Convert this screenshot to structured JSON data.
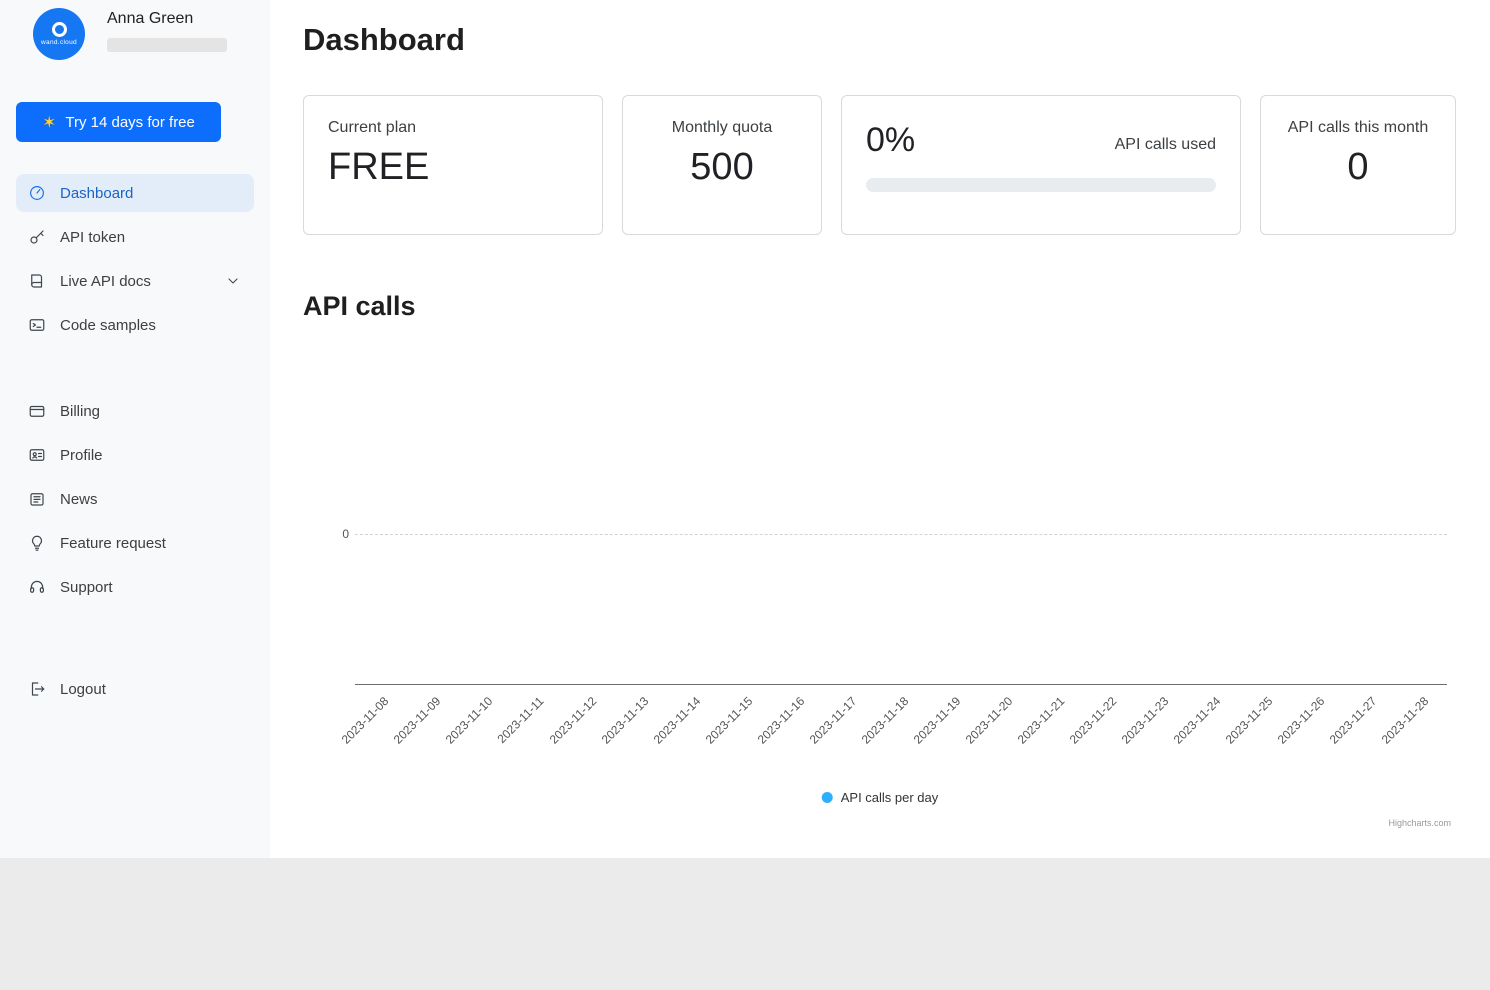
{
  "sidebar": {
    "logo_text": "wand.cloud",
    "user_name": "Anna Green",
    "trial_button_label": "Try 14 days for free",
    "nav_primary": [
      {
        "label": "Dashboard",
        "active": true
      },
      {
        "label": "API token"
      },
      {
        "label": "Live API docs"
      },
      {
        "label": "Code samples"
      }
    ],
    "nav_secondary": [
      {
        "label": "Billing"
      },
      {
        "label": "Profile"
      },
      {
        "label": "News"
      },
      {
        "label": "Feature request"
      },
      {
        "label": "Support"
      }
    ],
    "logout_label": "Logout"
  },
  "header": {
    "title": "Dashboard"
  },
  "cards": {
    "current_plan": {
      "label": "Current plan",
      "value": "FREE"
    },
    "monthly_quota": {
      "label": "Monthly quota",
      "value": "500"
    },
    "usage": {
      "percent": "0%",
      "percent_value": 0,
      "label": "API calls used"
    },
    "calls_month": {
      "label": "API calls this month",
      "value": "0"
    }
  },
  "chart_section": {
    "title": "API calls"
  },
  "chart_data": {
    "type": "line",
    "title": "API calls",
    "x": [
      "2023-11-08",
      "2023-11-09",
      "2023-11-10",
      "2023-11-11",
      "2023-11-12",
      "2023-11-13",
      "2023-11-14",
      "2023-11-15",
      "2023-11-16",
      "2023-11-17",
      "2023-11-18",
      "2023-11-19",
      "2023-11-20",
      "2023-11-21",
      "2023-11-22",
      "2023-11-23",
      "2023-11-24",
      "2023-11-25",
      "2023-11-26",
      "2023-11-27",
      "2023-11-28"
    ],
    "series": [
      {
        "name": "API calls per day",
        "values": [
          0,
          0,
          0,
          0,
          0,
          0,
          0,
          0,
          0,
          0,
          0,
          0,
          0,
          0,
          0,
          0,
          0,
          0,
          0,
          0,
          0
        ]
      }
    ],
    "xlabel": "",
    "ylabel": "",
    "y_ticks": [
      "0"
    ],
    "ylim": [
      0,
      1
    ],
    "grid": "dashed-horizontal",
    "legend_position": "bottom-center",
    "credits": "Highcharts.com",
    "series_color": "#2caffe"
  },
  "colors": {
    "accent": "#0d6efd",
    "active_nav_bg": "#e3edf9",
    "series": "#2caffe",
    "progress_track": "#e9ecef",
    "sidebar_bg": "#f8f9fa",
    "page_bg": "#ebebeb"
  }
}
